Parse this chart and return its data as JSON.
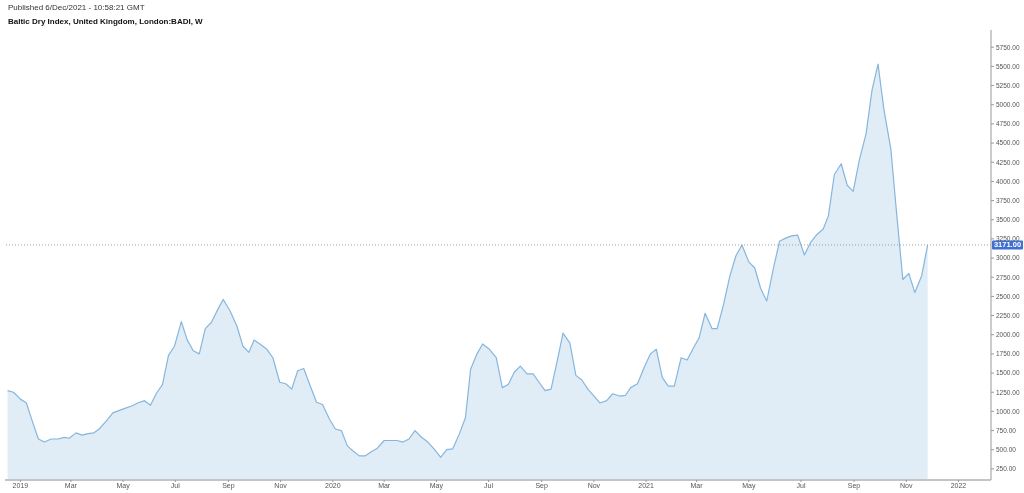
{
  "chart_data": {
    "type": "area",
    "title": "Baltic Dry Index, United Kingdom, London:BADI, W",
    "annotations": [
      "Published 6/Dec/2021 - 10:58:21 GMT"
    ],
    "x": [
      "2018-12-17",
      "2018-12-24",
      "2019-01-01",
      "2019-01-08",
      "2019-01-15",
      "2019-01-22",
      "2019-01-29",
      "2019-02-06",
      "2019-02-14",
      "2019-02-21",
      "2019-02-27",
      "2019-03-07",
      "2019-03-14",
      "2019-03-21",
      "2019-03-28",
      "2019-04-03",
      "2019-04-11",
      "2019-04-19",
      "2019-04-26",
      "2019-05-03",
      "2019-05-11",
      "2019-05-18",
      "2019-05-26",
      "2019-06-02",
      "2019-06-09",
      "2019-06-16",
      "2019-06-23",
      "2019-06-30",
      "2019-07-08",
      "2019-07-15",
      "2019-07-22",
      "2019-07-29",
      "2019-08-05",
      "2019-08-12",
      "2019-08-21",
      "2019-08-26",
      "2019-09-03",
      "2019-09-11",
      "2019-09-18",
      "2019-09-25",
      "2019-10-01",
      "2019-10-09",
      "2019-10-16",
      "2019-10-23",
      "2019-10-31",
      "2019-11-07",
      "2019-11-14",
      "2019-11-21",
      "2019-11-28",
      "2019-12-05",
      "2019-12-13",
      "2019-12-20",
      "2019-12-28",
      "2020-01-04",
      "2020-01-11",
      "2020-01-18",
      "2020-01-25",
      "2020-02-01",
      "2020-02-08",
      "2020-02-16",
      "2020-02-22",
      "2020-03-01",
      "2020-03-09",
      "2020-03-16",
      "2020-03-23",
      "2020-03-30",
      "2020-04-06",
      "2020-04-14",
      "2020-04-21",
      "2020-04-29",
      "2020-05-06",
      "2020-05-13",
      "2020-05-20",
      "2020-05-28",
      "2020-06-04",
      "2020-06-10",
      "2020-06-17",
      "2020-06-24",
      "2020-07-02",
      "2020-07-10",
      "2020-07-17",
      "2020-07-24",
      "2020-07-31",
      "2020-08-07",
      "2020-08-15",
      "2020-08-22",
      "2020-08-29",
      "2020-09-05",
      "2020-09-12",
      "2020-09-19",
      "2020-09-26",
      "2020-10-04",
      "2020-10-11",
      "2020-10-18",
      "2020-10-25",
      "2020-11-02",
      "2020-11-08",
      "2020-11-16",
      "2020-11-23",
      "2020-12-01",
      "2020-12-08",
      "2020-12-14",
      "2020-12-22",
      "2020-12-30",
      "2021-01-06",
      "2021-01-13",
      "2021-01-20",
      "2021-01-27",
      "2021-02-03",
      "2021-02-11",
      "2021-02-18",
      "2021-02-25",
      "2021-03-04",
      "2021-03-11",
      "2021-03-19",
      "2021-03-25",
      "2021-04-01",
      "2021-04-09",
      "2021-04-16",
      "2021-04-23",
      "2021-05-01",
      "2021-05-08",
      "2021-05-15",
      "2021-05-22",
      "2021-05-30",
      "2021-06-06",
      "2021-06-13",
      "2021-06-20",
      "2021-06-27",
      "2021-07-05",
      "2021-07-12",
      "2021-07-19",
      "2021-07-27",
      "2021-08-02",
      "2021-08-09",
      "2021-08-17",
      "2021-08-24",
      "2021-08-31",
      "2021-09-07",
      "2021-09-15",
      "2021-09-22",
      "2021-09-29",
      "2021-10-06",
      "2021-10-14",
      "2021-10-21",
      "2021-10-28",
      "2021-11-04",
      "2021-11-11",
      "2021-11-19",
      "2021-11-26"
    ],
    "values": [
      1270,
      1250,
      1160,
      1110,
      870,
      640,
      600,
      640,
      640,
      660,
      650,
      720,
      690,
      710,
      720,
      770,
      870,
      980,
      1010,
      1040,
      1070,
      1110,
      1140,
      1080,
      1240,
      1350,
      1730,
      1850,
      2170,
      1930,
      1790,
      1750,
      2080,
      2160,
      2360,
      2460,
      2310,
      2110,
      1850,
      1770,
      1930,
      1870,
      1810,
      1700,
      1380,
      1360,
      1290,
      1530,
      1560,
      1350,
      1120,
      1090,
      900,
      770,
      750,
      550,
      480,
      420,
      420,
      480,
      520,
      620,
      620,
      620,
      600,
      640,
      750,
      660,
      600,
      500,
      400,
      500,
      510,
      710,
      920,
      1550,
      1740,
      1880,
      1810,
      1700,
      1310,
      1350,
      1510,
      1590,
      1490,
      1490,
      1380,
      1270,
      1290,
      1650,
      2020,
      1890,
      1470,
      1410,
      1290,
      1190,
      1110,
      1140,
      1230,
      1200,
      1210,
      1310,
      1360,
      1580,
      1750,
      1810,
      1440,
      1330,
      1330,
      1700,
      1670,
      1820,
      1960,
      2280,
      2080,
      2080,
      2370,
      2770,
      3030,
      3170,
      2950,
      2870,
      2600,
      2440,
      2880,
      3220,
      3260,
      3290,
      3300,
      3040,
      3200,
      3300,
      3380,
      3550,
      4090,
      4230,
      3950,
      3870,
      4270,
      4620,
      5190,
      5530,
      4930,
      4420,
      3550,
      2720,
      2800,
      2550,
      2770,
      3170
    ],
    "color": "#86b6dd",
    "xlim": [
      "2018-12-14",
      "2022-02-08"
    ],
    "xticks": [
      {
        "value": "2019-01-01",
        "label": "2019"
      },
      {
        "value": "2019-03-01",
        "label": "Mar"
      },
      {
        "value": "2019-05-01",
        "label": "May"
      },
      {
        "value": "2019-07-01",
        "label": "Jul"
      },
      {
        "value": "2019-09-01",
        "label": "Sep"
      },
      {
        "value": "2019-11-01",
        "label": "Nov"
      },
      {
        "value": "2020-01-01",
        "label": "2020"
      },
      {
        "value": "2020-03-01",
        "label": "Mar"
      },
      {
        "value": "2020-05-01",
        "label": "May"
      },
      {
        "value": "2020-07-01",
        "label": "Jul"
      },
      {
        "value": "2020-09-01",
        "label": "Sep"
      },
      {
        "value": "2020-11-01",
        "label": "Nov"
      },
      {
        "value": "2021-01-01",
        "label": "2021"
      },
      {
        "value": "2021-03-01",
        "label": "Mar"
      },
      {
        "value": "2021-05-01",
        "label": "May"
      },
      {
        "value": "2021-07-01",
        "label": "Jul"
      },
      {
        "value": "2021-09-01",
        "label": "Sep"
      },
      {
        "value": "2021-11-01",
        "label": "Nov"
      },
      {
        "value": "2022-01-01",
        "label": "2022"
      }
    ],
    "ylim": [
      105,
      5975
    ],
    "yticks": [
      {
        "value": 250,
        "label": "250.00"
      },
      {
        "value": 500,
        "label": "500.00"
      },
      {
        "value": 750,
        "label": "750.00"
      },
      {
        "value": 1000,
        "label": "1000.00"
      },
      {
        "value": 1250,
        "label": "1250.00"
      },
      {
        "value": 1500,
        "label": "1500.00"
      },
      {
        "value": 1750,
        "label": "1750.00"
      },
      {
        "value": 2000,
        "label": "2000.00"
      },
      {
        "value": 2250,
        "label": "2250.00"
      },
      {
        "value": 2500,
        "label": "2500.00"
      },
      {
        "value": 2750,
        "label": "2750.00"
      },
      {
        "value": 3000,
        "label": "3000.00"
      },
      {
        "value": 3250,
        "label": "3250.00"
      },
      {
        "value": 3500,
        "label": "3500.00"
      },
      {
        "value": 3750,
        "label": "3750.00"
      },
      {
        "value": 4000,
        "label": "4000.00"
      },
      {
        "value": 4250,
        "label": "4250.00"
      },
      {
        "value": 4500,
        "label": "4500.00"
      },
      {
        "value": 4750,
        "label": "4750.00"
      },
      {
        "value": 5000,
        "label": "5000.00"
      },
      {
        "value": 5250,
        "label": "5250.00"
      },
      {
        "value": 5500,
        "label": "5500.00"
      },
      {
        "value": 5750,
        "label": "5750.00"
      }
    ],
    "ref_lines": [
      {
        "axis": "y",
        "value": 3171,
        "label": "3171.00",
        "color": "#8a8a8a",
        "line_style": "dotted"
      }
    ]
  }
}
